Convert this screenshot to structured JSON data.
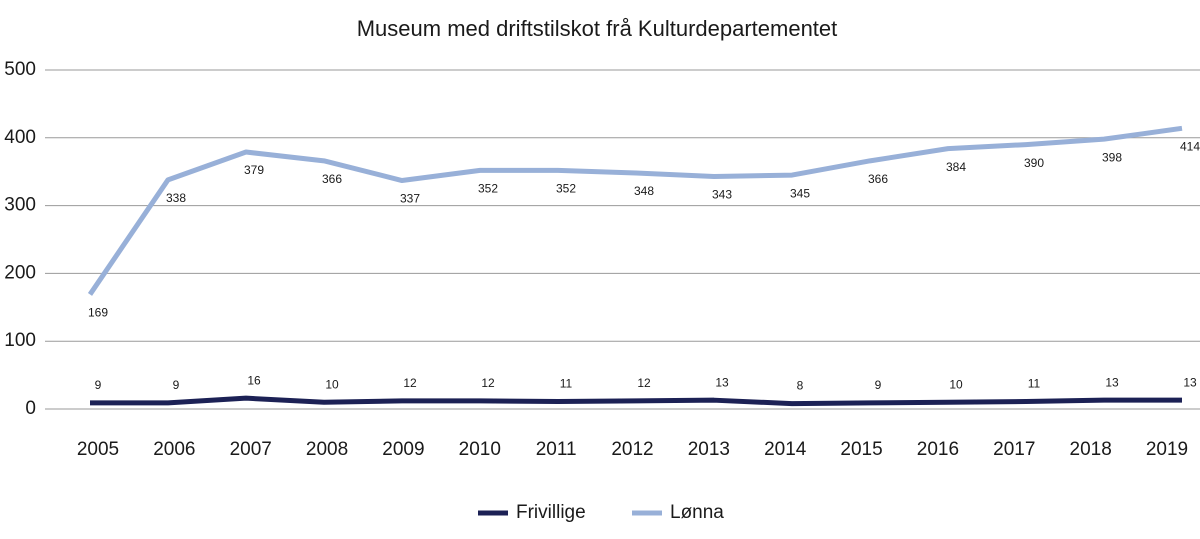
{
  "chart_data": {
    "type": "line",
    "title": "Museum med driftstilskot frå Kulturdepartementet",
    "categories": [
      "2005",
      "2006",
      "2007",
      "2008",
      "2009",
      "2010",
      "2011",
      "2012",
      "2013",
      "2014",
      "2015",
      "2016",
      "2017",
      "2018",
      "2019"
    ],
    "series": [
      {
        "name": "Frivillige",
        "color": "#1c2155",
        "values": [
          9,
          9,
          16,
          10,
          12,
          12,
          11,
          12,
          13,
          8,
          9,
          10,
          11,
          13,
          13
        ]
      },
      {
        "name": "Lønna",
        "color": "#98b0d8",
        "values": [
          169,
          338,
          379,
          366,
          337,
          352,
          352,
          348,
          343,
          345,
          366,
          384,
          390,
          398,
          414
        ]
      }
    ],
    "ylim": [
      0,
      500
    ],
    "yticks": [
      0,
      100,
      200,
      300,
      400,
      500
    ],
    "grid": true,
    "legend": "bottom"
  }
}
